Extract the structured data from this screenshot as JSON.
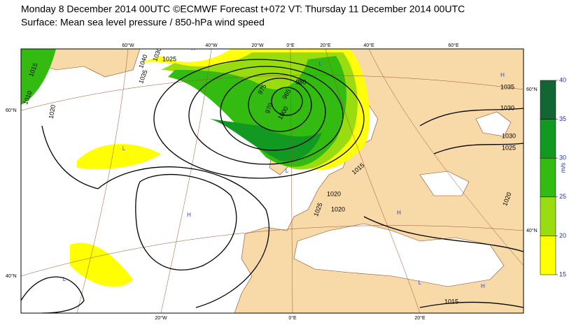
{
  "header": {
    "title": "Monday 8 December 2014 00UTC ©ECMWF Forecast t+072 VT: Thursday 11 December 2014 00UTC",
    "subtitle": "Surface: Mean sea level pressure / 850-hPa wind speed"
  },
  "colorbar": {
    "unit": "m/s",
    "ticks": [
      15,
      20,
      25,
      30,
      35,
      40
    ],
    "colors": [
      "#ffff00",
      "#99dd11",
      "#33bb11",
      "#119922",
      "#116633"
    ]
  },
  "graticule": {
    "top": [
      "60°W",
      "40°W",
      "20°W",
      "0°E",
      "20°E",
      "40°E",
      "60°E"
    ],
    "bottom": [
      "20°W",
      "0°E",
      "20°E"
    ],
    "left": [
      "60°N",
      "40°N"
    ],
    "right": [
      "60°N",
      "40°N"
    ]
  },
  "isobar_labels": [
    "1015",
    "1010",
    "1020",
    "1040",
    "1035",
    "1030",
    "1025",
    "975",
    "965",
    "970",
    "980",
    "1000",
    "1015",
    "1020",
    "1025",
    "1030",
    "1035",
    "1030",
    "1025",
    "1020",
    "1015",
    "1020"
  ],
  "pressure_centres": [
    "H",
    "L",
    "H",
    "L",
    "L",
    "H",
    "H",
    "L",
    "H",
    "L"
  ]
}
